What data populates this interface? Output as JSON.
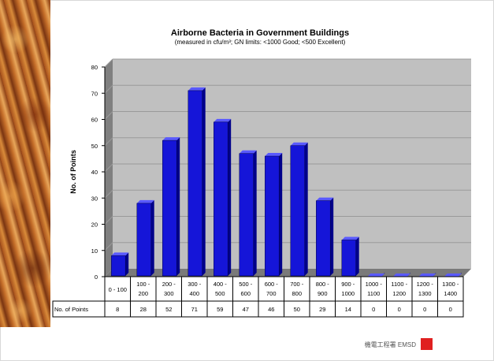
{
  "chart_data": {
    "type": "bar",
    "title": "Airborne Bacteria in Government Buildings",
    "subtitle": "(measured in cfu/m³; GN limits: <1000 Good; <500 Excellent)",
    "xlabel": "",
    "ylabel": "No. of Points",
    "ylim": [
      0,
      80
    ],
    "yticks": [
      0,
      10,
      20,
      30,
      40,
      50,
      60,
      70,
      80
    ],
    "grid": true,
    "categories": [
      [
        "0 - 100"
      ],
      [
        "100 -",
        "200"
      ],
      [
        "200 -",
        "300"
      ],
      [
        "300 -",
        "400"
      ],
      [
        "400 -",
        "500"
      ],
      [
        "500 -",
        "600"
      ],
      [
        "600 -",
        "700"
      ],
      [
        "700 -",
        "800"
      ],
      [
        "800 -",
        "900"
      ],
      [
        "900 -",
        "1000"
      ],
      [
        "1000 -",
        "1100"
      ],
      [
        "1100 -",
        "1200"
      ],
      [
        "1200 -",
        "1300"
      ],
      [
        "1300 -",
        "1400"
      ]
    ],
    "series": [
      {
        "name": "No. of Points",
        "values": [
          8,
          28,
          52,
          71,
          59,
          47,
          46,
          50,
          29,
          14,
          0,
          0,
          0,
          0
        ]
      }
    ],
    "colors": {
      "bar_front": "#1515d8",
      "bar_side": "#00008a",
      "bar_top": "#5a5aff",
      "plot_background": "#c0c0c0",
      "grid": "#9a9a9a"
    }
  },
  "logo": {
    "text": "機電工程署 EMSD"
  }
}
